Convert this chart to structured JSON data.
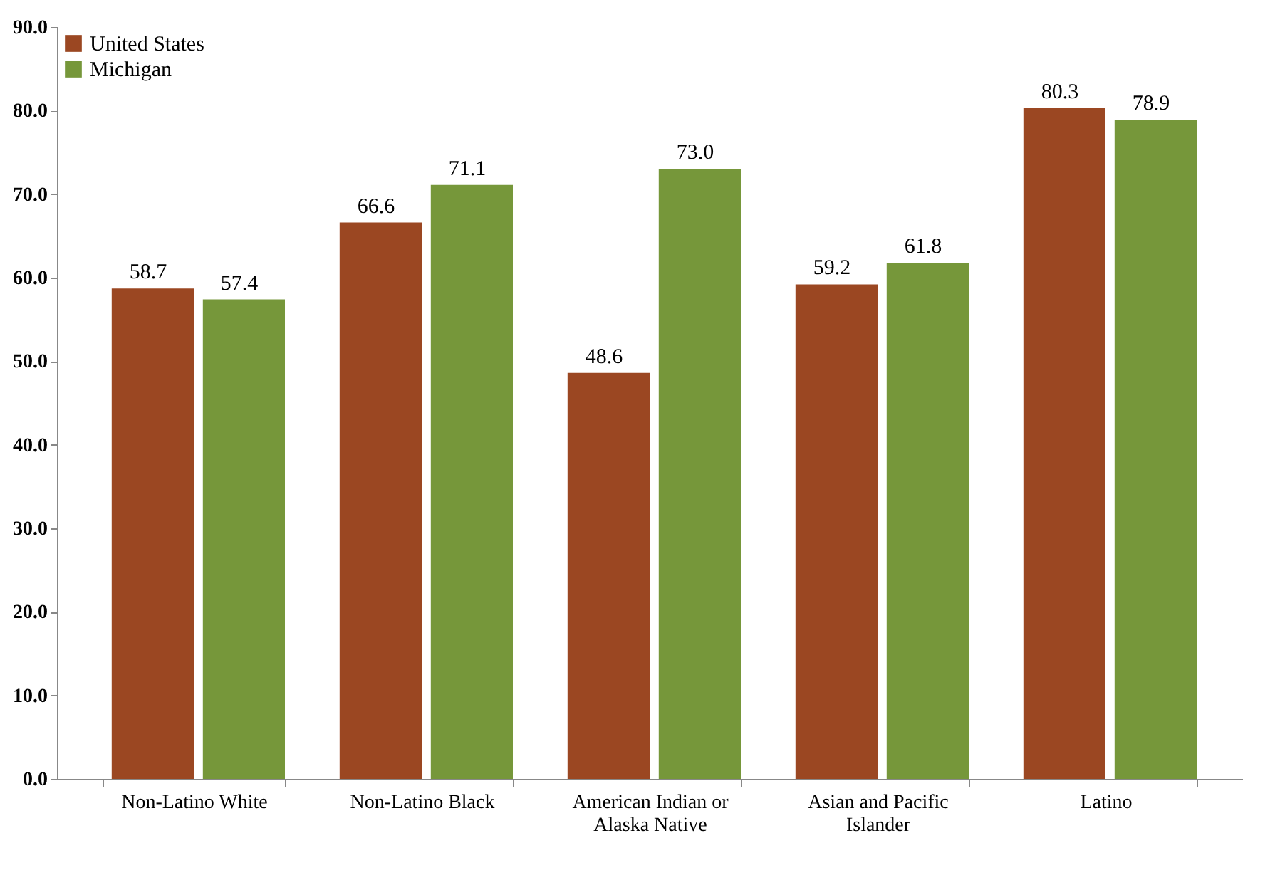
{
  "chart_data": {
    "type": "bar",
    "categories": [
      "Non-Latino White",
      "Non-Latino Black",
      "American Indian or Alaska Native",
      "Asian and Pacific Islander",
      "Latino"
    ],
    "series": [
      {
        "name": "United States",
        "color": "#9b4722",
        "values": [
          58.7,
          66.6,
          48.6,
          59.2,
          80.3
        ],
        "value_labels": [
          "58.7",
          "66.6",
          "48.6",
          "59.2",
          "80.3"
        ]
      },
      {
        "name": "Michigan",
        "color": "#76973a",
        "values": [
          57.4,
          71.1,
          73.0,
          61.8,
          78.9
        ],
        "value_labels": [
          "57.4",
          "71.1",
          "73.0",
          "61.8",
          "78.9"
        ]
      }
    ],
    "ylim": [
      0,
      90
    ],
    "yticks": [
      {
        "value": 0,
        "label": "0.0"
      },
      {
        "value": 10,
        "label": "10.0"
      },
      {
        "value": 20,
        "label": "20.0"
      },
      {
        "value": 30,
        "label": "30.0"
      },
      {
        "value": 40,
        "label": "40.0"
      },
      {
        "value": 50,
        "label": "50.0"
      },
      {
        "value": 60,
        "label": "60.0"
      },
      {
        "value": 70,
        "label": "70.0"
      },
      {
        "value": 80,
        "label": "80.0"
      },
      {
        "value": 90,
        "label": "90.0"
      }
    ],
    "grid": false,
    "legend": "top left"
  }
}
